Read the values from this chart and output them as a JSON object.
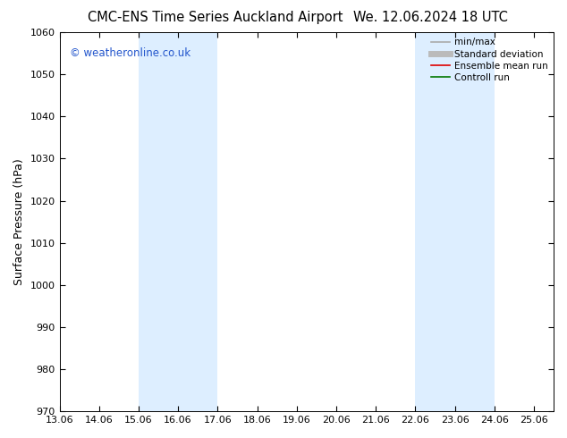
{
  "title_left": "CMC-ENS Time Series Auckland Airport",
  "title_right": "We. 12.06.2024 18 UTC",
  "ylabel": "Surface Pressure (hPa)",
  "ylim": [
    970,
    1060
  ],
  "yticks": [
    970,
    980,
    990,
    1000,
    1010,
    1020,
    1030,
    1040,
    1050,
    1060
  ],
  "xlim_min": 0,
  "xlim_max": 12.5,
  "xtick_labels": [
    "13.06",
    "14.06",
    "15.06",
    "16.06",
    "17.06",
    "18.06",
    "19.06",
    "20.06",
    "21.06",
    "22.06",
    "23.06",
    "24.06",
    "25.06"
  ],
  "xtick_positions": [
    0,
    1,
    2,
    3,
    4,
    5,
    6,
    7,
    8,
    9,
    10,
    11,
    12
  ],
  "shaded_bands": [
    {
      "xmin": 2,
      "xmax": 4,
      "color": "#ddeeff"
    },
    {
      "xmin": 9,
      "xmax": 11,
      "color": "#ddeeff"
    }
  ],
  "legend_entries": [
    {
      "label": "min/max",
      "color": "#aaaaaa",
      "lw": 1.2
    },
    {
      "label": "Standard deviation",
      "color": "#bbbbbb",
      "lw": 5
    },
    {
      "label": "Ensemble mean run",
      "color": "#dd0000",
      "lw": 1.2
    },
    {
      "label": "Controll run",
      "color": "#007700",
      "lw": 1.2
    }
  ],
  "watermark": "© weatheronline.co.uk",
  "watermark_color": "#2255cc",
  "background_color": "#ffffff",
  "plot_bg_color": "#ffffff",
  "title_fontsize": 10.5,
  "ylabel_fontsize": 9,
  "tick_fontsize": 8,
  "legend_fontsize": 7.5,
  "watermark_fontsize": 8.5
}
